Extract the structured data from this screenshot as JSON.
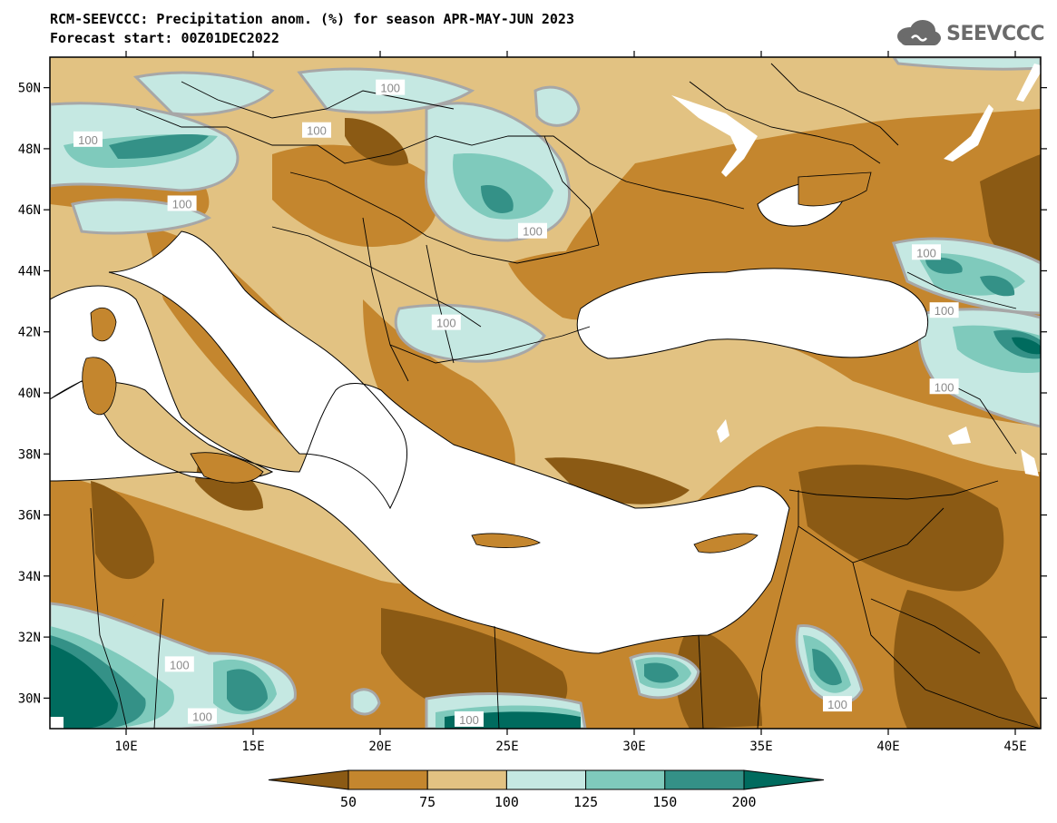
{
  "header": {
    "title": "RCM-SEEVCCC: Precipitation anom. (%) for season APR-MAY-JUN 2023",
    "subtitle": "Forecast start: 00Z01DEC2022"
  },
  "logo": {
    "text": "SEEVCCC",
    "icon": "cloud-icon"
  },
  "map": {
    "lon_range": [
      7,
      46
    ],
    "lat_range": [
      29,
      51
    ],
    "lon_ticks": [
      {
        "value": 10,
        "label": "10E"
      },
      {
        "value": 15,
        "label": "15E"
      },
      {
        "value": 20,
        "label": "20E"
      },
      {
        "value": 25,
        "label": "25E"
      },
      {
        "value": 30,
        "label": "30E"
      },
      {
        "value": 35,
        "label": "35E"
      },
      {
        "value": 40,
        "label": "40E"
      },
      {
        "value": 45,
        "label": "45E"
      }
    ],
    "lat_ticks": [
      {
        "value": 30,
        "label": "30N"
      },
      {
        "value": 32,
        "label": "32N"
      },
      {
        "value": 34,
        "label": "34N"
      },
      {
        "value": 36,
        "label": "36N"
      },
      {
        "value": 38,
        "label": "38N"
      },
      {
        "value": 40,
        "label": "40N"
      },
      {
        "value": 42,
        "label": "42N"
      },
      {
        "value": 44,
        "label": "44N"
      },
      {
        "value": 46,
        "label": "46N"
      },
      {
        "value": 48,
        "label": "48N"
      },
      {
        "value": 50,
        "label": "50N"
      }
    ],
    "contour_labels": [
      {
        "text": "100",
        "lon": 8.5,
        "lat": 48.3
      },
      {
        "text": "100",
        "lon": 17.5,
        "lat": 48.6
      },
      {
        "text": "100",
        "lon": 20.4,
        "lat": 50.0
      },
      {
        "text": "100",
        "lon": 12.2,
        "lat": 46.2
      },
      {
        "text": "100",
        "lon": 26.0,
        "lat": 45.3
      },
      {
        "text": "100",
        "lon": 22.6,
        "lat": 42.3
      },
      {
        "text": "100",
        "lon": 41.5,
        "lat": 44.6
      },
      {
        "text": "100",
        "lon": 42.2,
        "lat": 42.7
      },
      {
        "text": "100",
        "lon": 42.2,
        "lat": 40.2
      },
      {
        "text": "100",
        "lon": 12.1,
        "lat": 31.1
      },
      {
        "text": "100",
        "lon": 13.0,
        "lat": 29.4
      },
      {
        "text": "100",
        "lon": 23.5,
        "lat": 29.3
      },
      {
        "text": "100",
        "lon": 38.0,
        "lat": 29.8
      }
    ]
  },
  "colorbar": {
    "colors": [
      "#8b5a14",
      "#c4862e",
      "#e2c282",
      "#c5e8e2",
      "#7fcabc",
      "#349187",
      "#006b5e"
    ],
    "labels": [
      "50",
      "75",
      "100",
      "125",
      "150",
      "200"
    ]
  }
}
